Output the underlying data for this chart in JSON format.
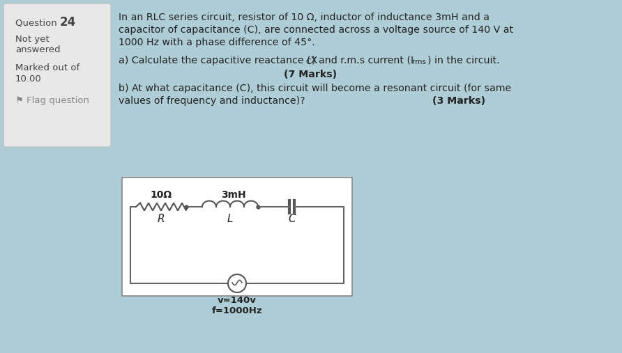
{
  "bg_color": "#aecdd6",
  "sidebar_bg": "#e8e8e8",
  "sidebar_border": "#bbbbbb",
  "circuit_bg": "#ffffff",
  "circuit_border": "#888888",
  "wire_color": "#666666",
  "component_color": "#555555",
  "text_color": "#222222",
  "sidebar_text_color": "#444444",
  "flag_color": "#888888",
  "title1": "In an RLC series circuit, resistor of 10 Ω, inductor of inductance 3mH and a",
  "title2": "capacitor of capacitance (C), are connected across a voltage source of 140 V at",
  "title3": "1000 Hz with a phase difference of 45°.",
  "part_a1": "a) Calculate the capacitive reactance (X",
  "part_a1_sub": "C",
  "part_a1b": ") and r.m.s current (I",
  "part_a1_sub2": "rms",
  "part_a1c": ") in the circuit.",
  "part_a_marks": "(7 Marks)",
  "part_b1": "b) At what capacitance (C), this circuit will become a resonant circuit (for same",
  "part_b2": "values of frequency and inductance)?",
  "part_b_marks": "(3 Marks)",
  "circuit_R_label": "10Ω",
  "circuit_L_label": "3mH",
  "lbl_R": "R",
  "lbl_L": "L",
  "lbl_C": "C",
  "vs_v": "v=140v",
  "vs_f": "f=1000Hz",
  "fig_width": 8.92,
  "fig_height": 5.07,
  "dpi": 100
}
